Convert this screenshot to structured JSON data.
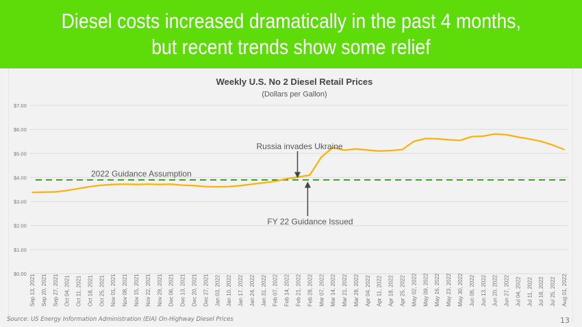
{
  "slide": {
    "title_line1": "Diesel costs increased dramatically in the past 4 months,",
    "title_line2": "but recent trends show some relief",
    "source": "Source:  US Energy Information Administration (EIA) On-Highway Diesel Prices",
    "page_number": "13",
    "header_color": "#5ddc0a"
  },
  "chart_data": {
    "type": "line",
    "title": "Weekly U.S. No 2 Diesel Retail Prices",
    "subtitle": "(Dollars per Gallon)",
    "ylim": [
      0,
      7
    ],
    "yticks": [
      "$0.00",
      "$1.00",
      "$2.00",
      "$3.00",
      "$4.00",
      "$5.00",
      "$6.00",
      "$7.00"
    ],
    "grid": true,
    "categories": [
      "Sep 13, 2021",
      "Sep 20, 2021",
      "Sep 27, 2021",
      "Oct 04, 2021",
      "Oct 11, 2021",
      "Oct 18, 2021",
      "Oct 25, 2021",
      "Nov 01, 2021",
      "Nov 08, 2021",
      "Nov 15, 2021",
      "Nov 22, 2021",
      "Nov 29, 2021",
      "Dec 06, 2021",
      "Dec 13, 2021",
      "Dec 20, 2021",
      "Dec 27, 2021",
      "Jan 03, 2022",
      "Jan 10, 2022",
      "Jan 17, 2022",
      "Jan 24, 2022",
      "Jan 31, 2022",
      "Feb 07, 2022",
      "Feb 14, 2022",
      "Feb 21, 2022",
      "Feb 28, 2022",
      "Mar 07, 2022",
      "Mar 14, 2022",
      "Mar 21, 2022",
      "Mar 28, 2022",
      "Apr 04, 2022",
      "Apr 11, 2022",
      "Apr 18, 2022",
      "Apr 25, 2022",
      "May 02, 2022",
      "May 09, 2022",
      "May 16, 2022",
      "May 23, 2022",
      "May 30, 2022",
      "Jun 06, 2022",
      "Jun 13, 2022",
      "Jun 20, 2022",
      "Jun 27, 2022",
      "Jul 04, 2022",
      "Jul 11, 2022",
      "Jul 18, 2022",
      "Jul 25, 2022",
      "Aug 01, 2022"
    ],
    "series": [
      {
        "color": "#ffb000",
        "values": [
          3.38,
          3.39,
          3.4,
          3.46,
          3.54,
          3.62,
          3.68,
          3.71,
          3.72,
          3.71,
          3.72,
          3.71,
          3.72,
          3.68,
          3.66,
          3.62,
          3.61,
          3.62,
          3.66,
          3.72,
          3.78,
          3.84,
          3.95,
          4.02,
          4.1,
          4.85,
          5.25,
          5.13,
          5.19,
          5.14,
          5.1,
          5.12,
          5.16,
          5.5,
          5.62,
          5.61,
          5.57,
          5.54,
          5.7,
          5.72,
          5.81,
          5.78,
          5.68,
          5.6,
          5.5,
          5.35,
          5.16
        ]
      }
    ],
    "reference_line": {
      "label": "2022 Guidance Assumption",
      "value": 3.9,
      "color": "#33a61a",
      "style": "dashed"
    },
    "annotations": [
      {
        "text": "Russia invades Ukraine",
        "at": "Feb 21, 2022",
        "direction": "down"
      },
      {
        "text": "FY 22 Guidance Issued",
        "at": "Feb 28, 2022",
        "direction": "up"
      }
    ]
  }
}
